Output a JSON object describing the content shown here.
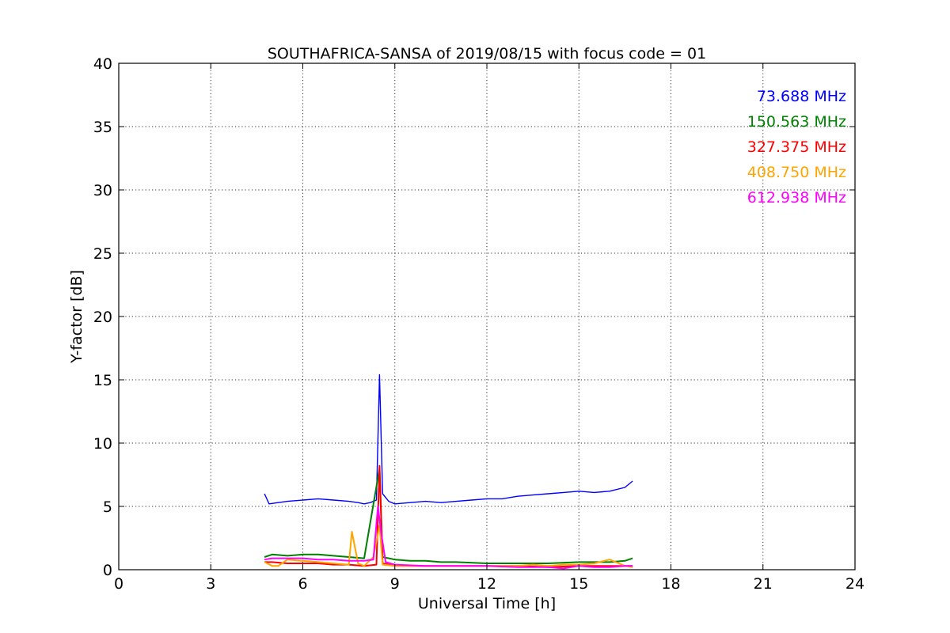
{
  "chart_data": {
    "type": "line",
    "title": "SOUTHAFRICA-SANSA of 2019/08/15 with focus code = 01",
    "xlabel": "Universal Time [h]",
    "ylabel": "Y-factor [dB]",
    "xlim": [
      0,
      24
    ],
    "ylim": [
      0,
      40
    ],
    "xticks": [
      0,
      3,
      6,
      9,
      12,
      15,
      18,
      21,
      24
    ],
    "yticks": [
      0,
      5,
      10,
      15,
      20,
      25,
      30,
      35,
      40
    ],
    "grid": true,
    "legend_placement": "top-right",
    "series": [
      {
        "name": "73.688 MHz",
        "color": "#0000ff",
        "x": [
          4.75,
          4.9,
          5.2,
          5.5,
          6.0,
          6.5,
          7.0,
          7.5,
          7.8,
          8.0,
          8.2,
          8.4,
          8.5,
          8.6,
          8.8,
          9.0,
          9.5,
          10.0,
          10.5,
          11.0,
          11.5,
          12.0,
          12.5,
          13.0,
          13.5,
          14.0,
          14.5,
          15.0,
          15.5,
          16.0,
          16.5,
          16.75
        ],
        "y": [
          6.0,
          5.2,
          5.3,
          5.4,
          5.5,
          5.6,
          5.5,
          5.4,
          5.3,
          5.2,
          5.3,
          5.5,
          15.4,
          6.0,
          5.4,
          5.2,
          5.3,
          5.4,
          5.3,
          5.4,
          5.5,
          5.6,
          5.6,
          5.8,
          5.9,
          6.0,
          6.1,
          6.2,
          6.1,
          6.2,
          6.5,
          7.0
        ]
      },
      {
        "name": "150.563 MHz",
        "color": "#008000",
        "x": [
          4.75,
          5.0,
          5.5,
          6.0,
          6.5,
          7.0,
          7.5,
          8.0,
          8.5,
          8.6,
          9.0,
          9.5,
          10.0,
          10.5,
          11.0,
          12.0,
          13.0,
          14.0,
          15.0,
          15.5,
          16.0,
          16.5,
          16.75
        ],
        "y": [
          1.0,
          1.2,
          1.1,
          1.2,
          1.2,
          1.1,
          1.0,
          0.9,
          8.0,
          1.0,
          0.8,
          0.7,
          0.7,
          0.6,
          0.6,
          0.5,
          0.5,
          0.5,
          0.6,
          0.6,
          0.6,
          0.7,
          0.9
        ]
      },
      {
        "name": "327.375 MHz",
        "color": "#ff0000",
        "x": [
          4.75,
          5.0,
          5.5,
          6.0,
          6.5,
          7.0,
          7.5,
          8.0,
          8.4,
          8.5,
          8.6,
          9.0,
          9.5,
          10.0,
          11.0,
          12.0,
          13.0,
          14.0,
          15.0,
          15.5,
          16.0,
          16.5,
          16.75
        ],
        "y": [
          0.6,
          0.6,
          0.5,
          0.5,
          0.5,
          0.4,
          0.4,
          0.3,
          0.4,
          8.2,
          0.5,
          0.3,
          0.3,
          0.3,
          0.3,
          0.3,
          0.3,
          0.2,
          0.3,
          0.3,
          0.3,
          0.3,
          0.3
        ]
      },
      {
        "name": "408.750 MHz",
        "color": "#ffa500",
        "x": [
          4.75,
          5.0,
          5.2,
          5.5,
          6.0,
          6.5,
          7.0,
          7.5,
          7.6,
          7.8,
          8.0,
          8.3,
          8.5,
          8.6,
          9.0,
          10.0,
          11.0,
          12.0,
          13.0,
          13.5,
          14.0,
          14.5,
          15.0,
          15.5,
          16.0,
          16.5,
          16.75
        ],
        "y": [
          0.6,
          0.3,
          0.3,
          0.8,
          0.7,
          0.6,
          0.5,
          0.4,
          3.0,
          0.5,
          0.3,
          1.0,
          3.5,
          0.4,
          0.3,
          0.3,
          0.3,
          0.3,
          0.3,
          0.4,
          0.3,
          0.4,
          0.4,
          0.5,
          0.8,
          0.3,
          0.2
        ]
      },
      {
        "name": "612.938 MHz",
        "color": "#ff00ff",
        "x": [
          4.75,
          5.0,
          5.5,
          6.0,
          6.5,
          7.0,
          7.5,
          8.0,
          8.3,
          8.45,
          8.55,
          8.7,
          9.0,
          10.0,
          11.0,
          12.0,
          13.0,
          14.0,
          14.5,
          15.0,
          15.5,
          16.0,
          16.5,
          16.75
        ],
        "y": [
          0.8,
          0.9,
          0.9,
          0.9,
          0.8,
          0.8,
          0.7,
          0.7,
          0.8,
          5.0,
          3.0,
          0.6,
          0.4,
          0.3,
          0.3,
          0.3,
          0.2,
          0.2,
          0.1,
          0.3,
          0.2,
          0.2,
          0.3,
          0.3
        ]
      }
    ]
  }
}
